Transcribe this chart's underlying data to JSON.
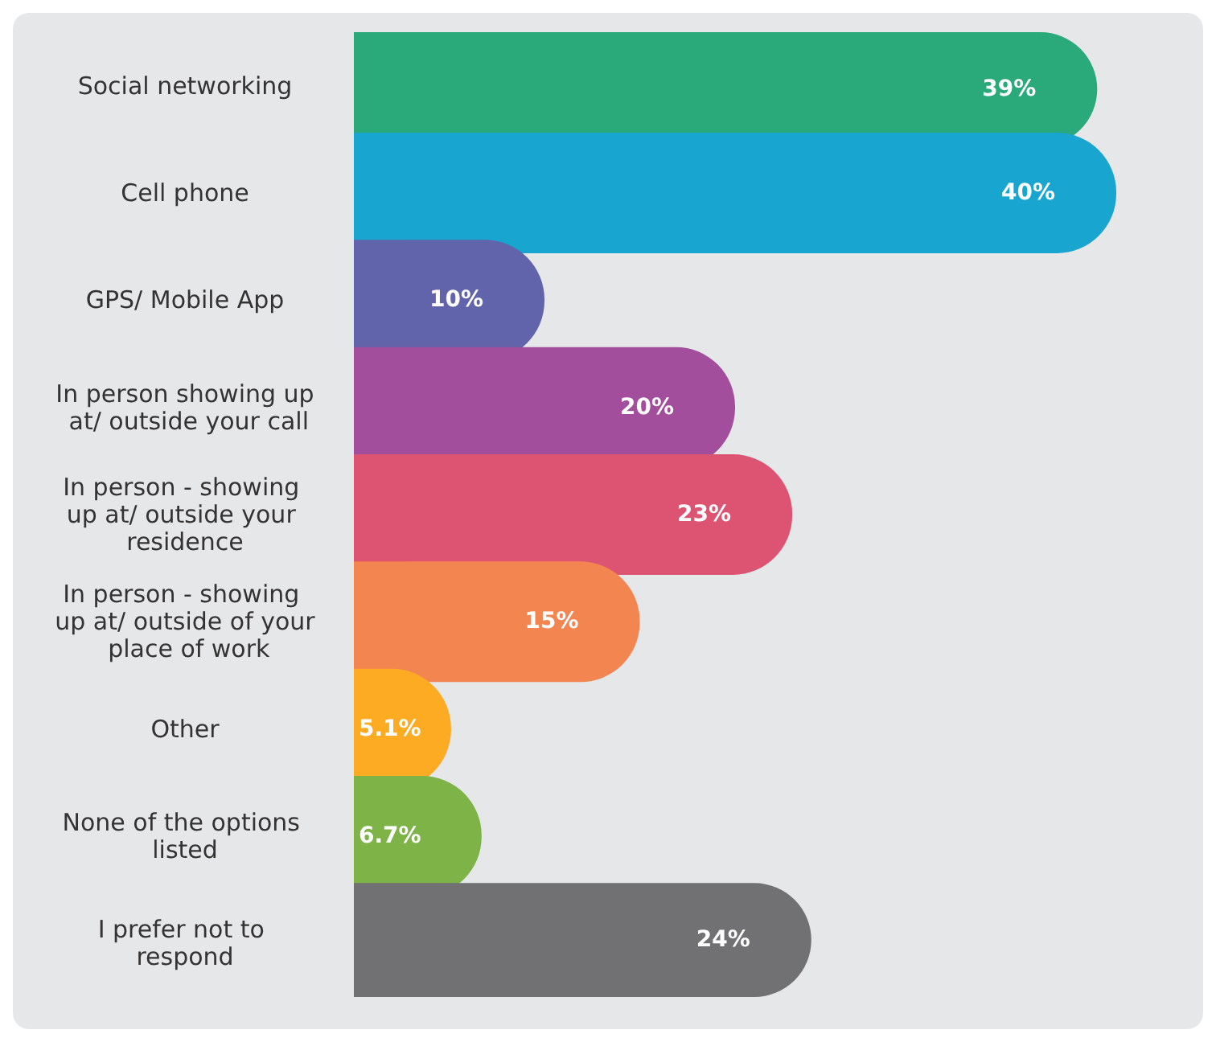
{
  "chart_data": {
    "type": "bar",
    "orientation": "horizontal",
    "categories": [
      "Social networking",
      "Cell phone",
      "GPS/ Mobile App",
      "In person showing up at/ outside your call",
      "In person - showing up at/ outside your residence",
      "In person - showing up at/ outside of your place of work",
      "Other",
      "None of the options listed",
      "I prefer not to respond"
    ],
    "values": [
      39,
      40,
      10,
      20,
      23,
      15,
      5.1,
      6.7,
      24
    ],
    "value_labels": [
      "39%",
      "40%",
      "10%",
      "20%",
      "23%",
      "15%",
      "5.1%",
      "6.7%",
      "24%"
    ],
    "colors": [
      "#2aa97a",
      "#18a6d0",
      "#6264ab",
      "#a34e9c",
      "#dc5472",
      "#f28550",
      "#fdab22",
      "#7db347",
      "#717173"
    ],
    "stacked": false
  }
}
